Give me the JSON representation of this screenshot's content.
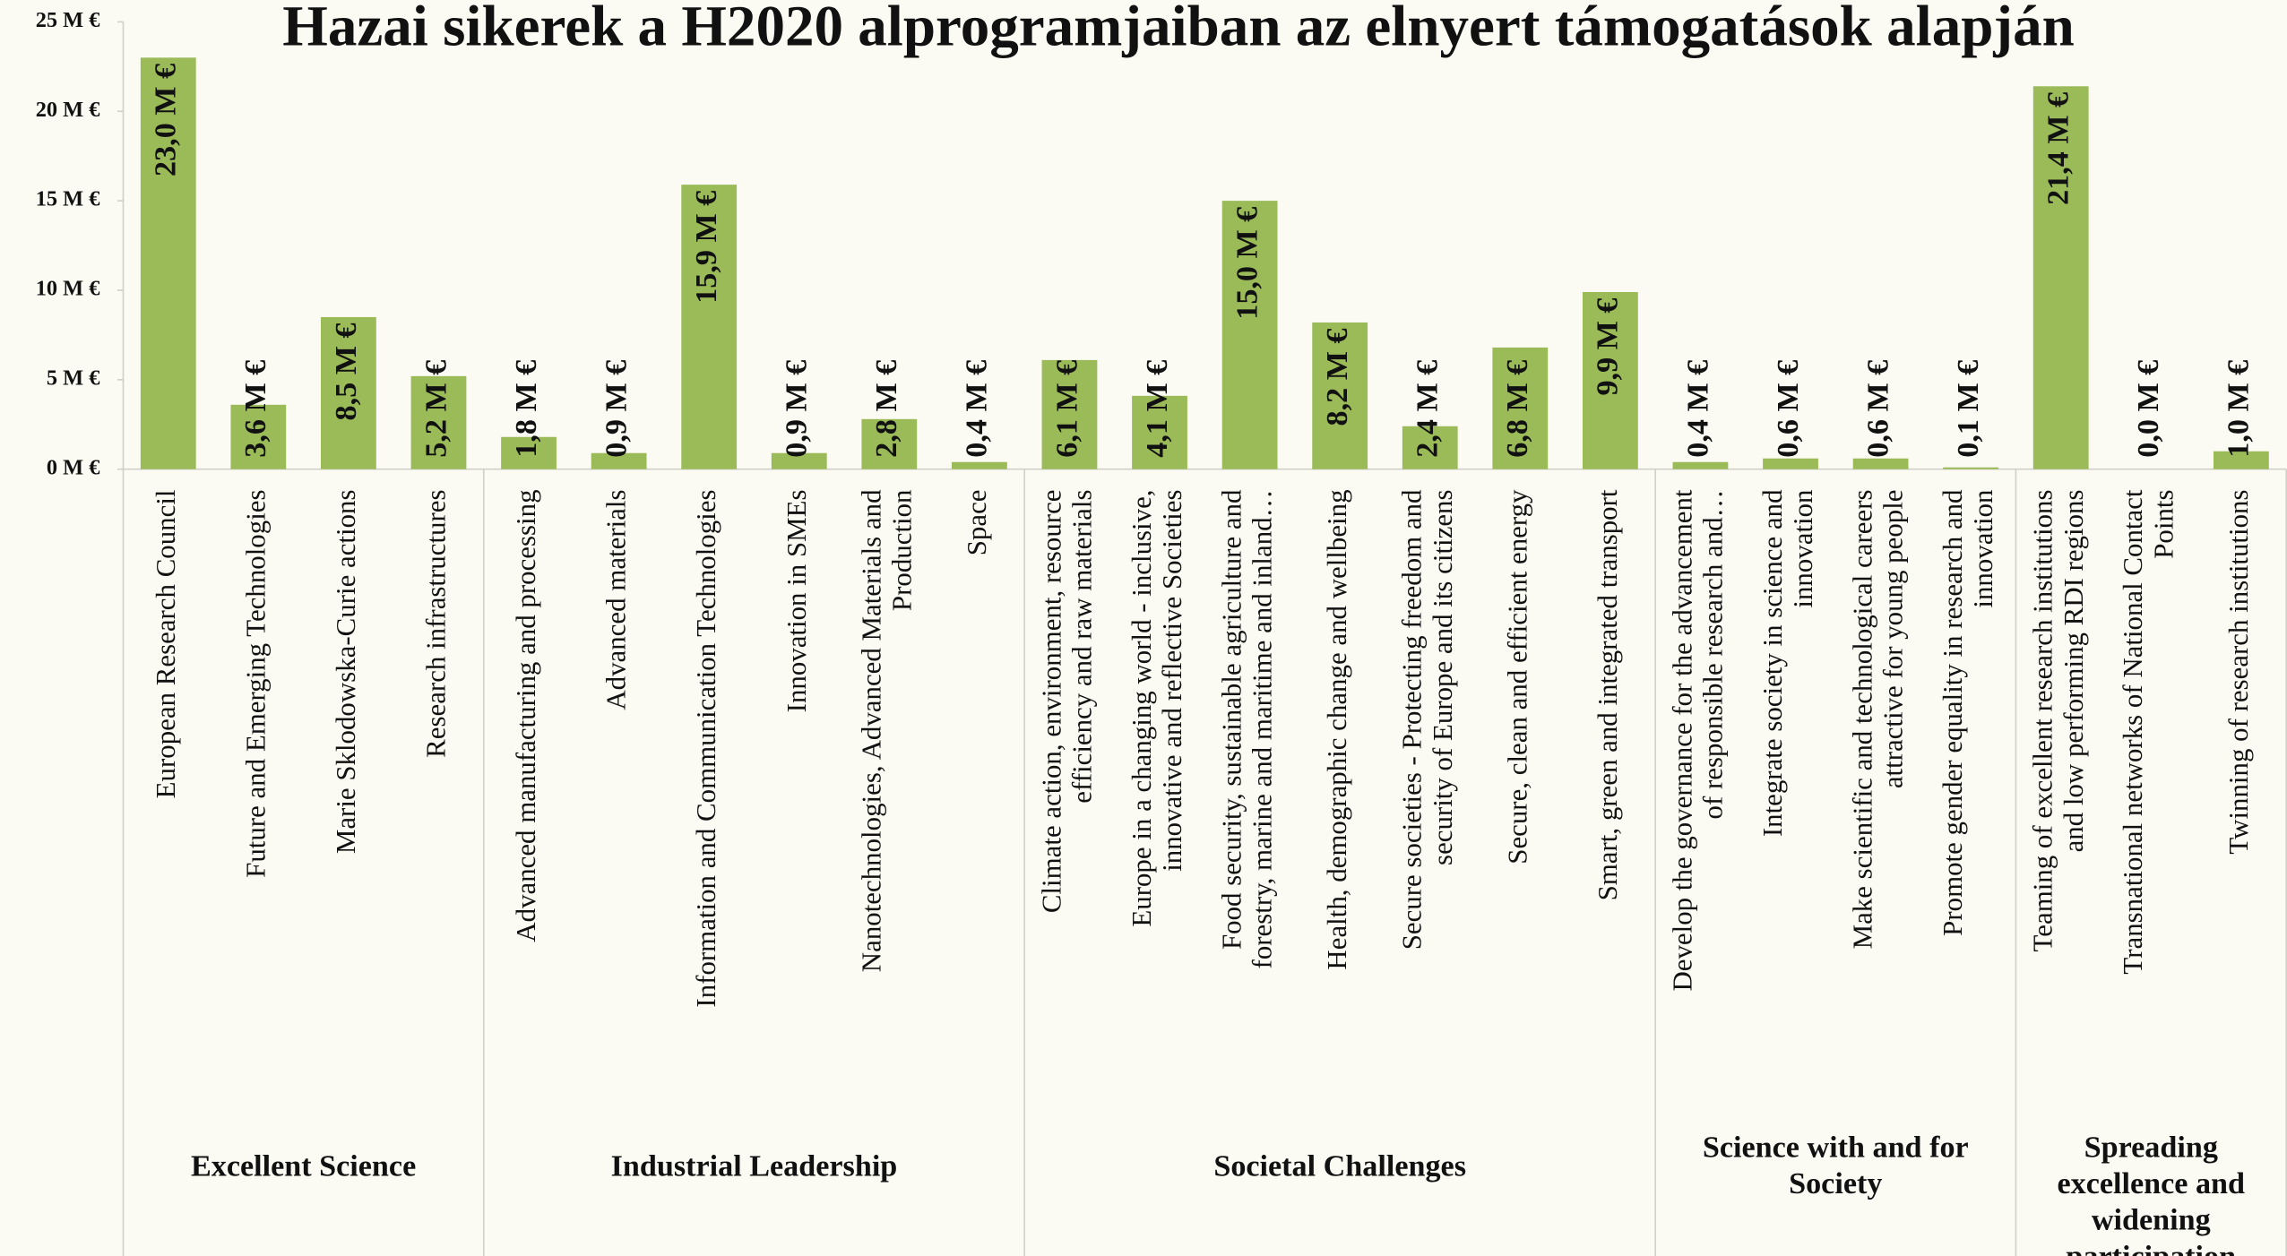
{
  "chart_data": {
    "type": "bar",
    "title": "Hazai sikerek a H2020 alprogramjaiban az elnyert támogatások alapján",
    "categories": [
      "European Research Council",
      "Future and Emerging Technologies",
      "Marie Sklodowska-Curie actions",
      "Research infrastructures",
      "Advanced manufacturing and processing",
      "Advanced materials",
      "Information and Communication Technologies",
      "Innovation in SMEs",
      "Nanotechnologies, Advanced Materials and Production",
      "Space",
      "Climate action, environment, resource efficiency and raw materials",
      "Europe in a changing world - inclusive, innovative and reflective Societies",
      "Food security, sustainable agriculture and forestry, marine and maritime and inland…",
      "Health, demographic change and wellbeing",
      "Secure societies - Protecting freedom and security of Europe and its citizens",
      "Secure, clean and efficient energy",
      "Smart, green and integrated transport",
      "Develop the governance for the advancement of responsible research and…",
      "Integrate society in science and innovation",
      "Make scientific and technological careers attractive for young people",
      "Promote gender equality in research and innovation",
      "Teaming of excellent research institutions and low performing RDI regions",
      "Transnational networks of National Contact Points",
      "Twinning of research institutions"
    ],
    "groups": [
      {
        "label": "Excellent Science",
        "count": 4
      },
      {
        "label": "Industrial Leadership",
        "count": 6
      },
      {
        "label": "Societal Challenges",
        "count": 7
      },
      {
        "label": "Science with and for Society",
        "count": 4
      },
      {
        "label": "Spreading excellence and widening participation",
        "count": 3
      }
    ],
    "values": [
      23.0,
      3.6,
      8.5,
      5.2,
      1.8,
      0.9,
      15.9,
      0.9,
      2.8,
      0.4,
      6.1,
      4.1,
      15.0,
      8.2,
      2.4,
      6.8,
      9.9,
      0.4,
      0.6,
      0.6,
      0.1,
      21.4,
      0.0,
      1.0
    ],
    "value_labels": [
      "23,0 M €",
      "3,6 M €",
      "8,5 M €",
      "5,2 M €",
      "1,8 M €",
      "0,9 M €",
      "15,9 M €",
      "0,9 M €",
      "2,8 M €",
      "0,4 M €",
      "6,1 M €",
      "4,1 M €",
      "15,0 M €",
      "8,2 M €",
      "2,4 M €",
      "6,8 M €",
      "9,9 M €",
      "0,4 M €",
      "0,6 M €",
      "0,6 M €",
      "0,1 M €",
      "21,4 M €",
      "0,0 M €",
      "1,0 M €"
    ],
    "color": "#9bbb59",
    "ylim": [
      0,
      25
    ],
    "yticks": [
      {
        "value": 0,
        "label": "0 M €"
      },
      {
        "value": 5,
        "label": "5 M €"
      },
      {
        "value": 10,
        "label": "10 M €"
      },
      {
        "value": 15,
        "label": "15 M €"
      },
      {
        "value": 20,
        "label": "20 M €"
      },
      {
        "value": 25,
        "label": "25 M €"
      }
    ]
  }
}
